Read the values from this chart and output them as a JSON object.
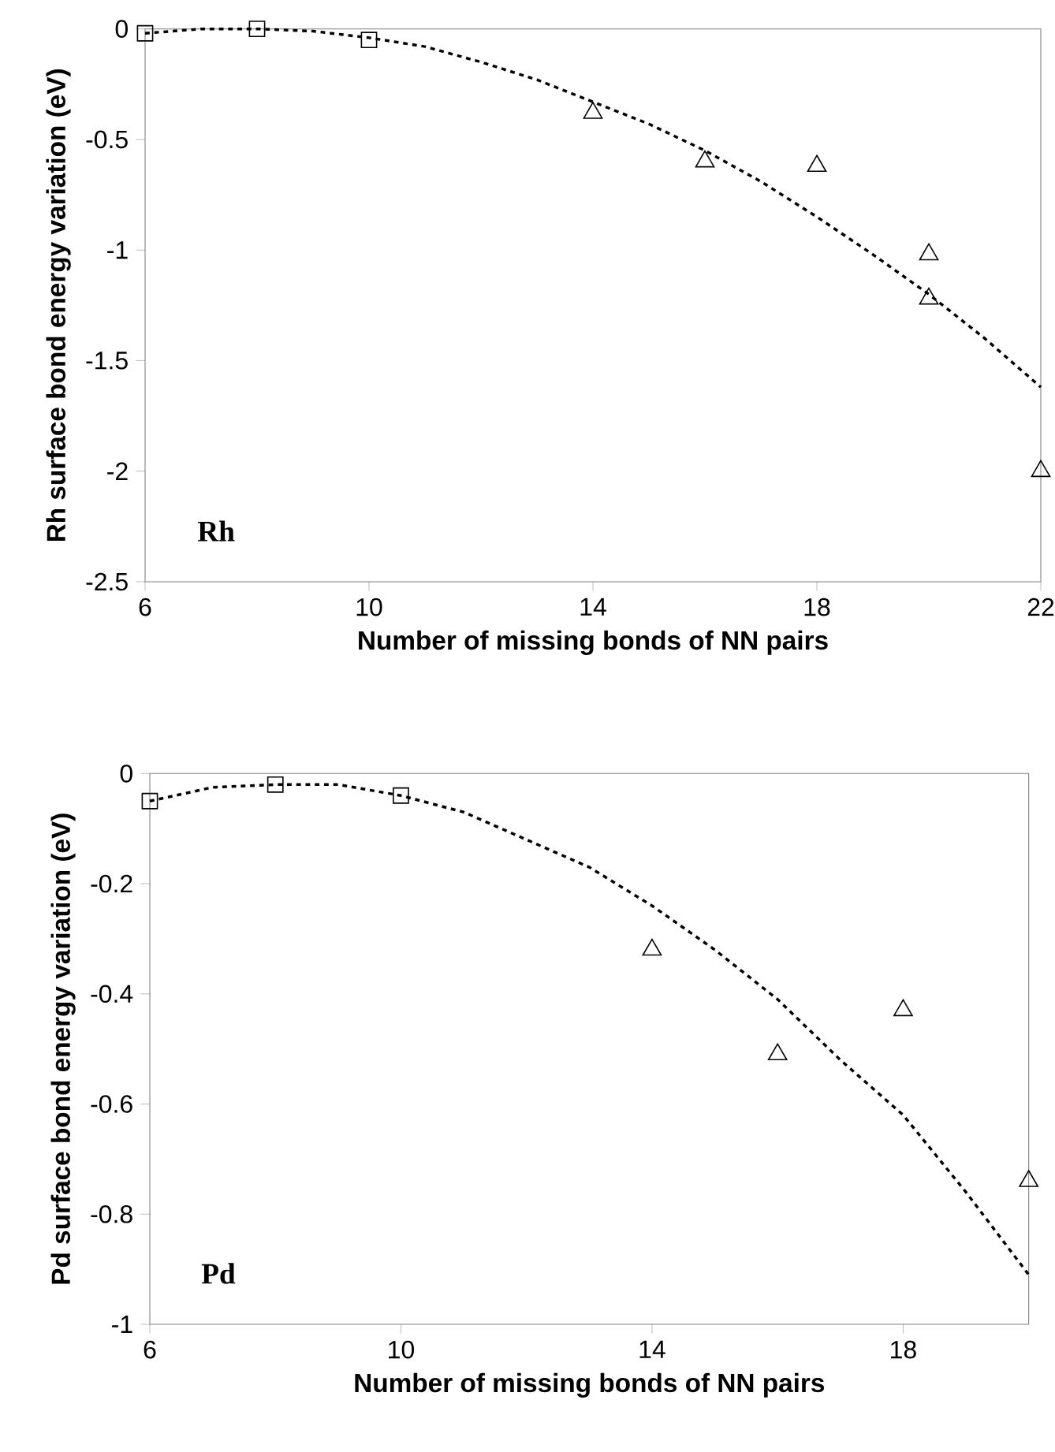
{
  "chart_data": [
    {
      "type": "scatter",
      "xlabel": "Number of missing bonds of NN pairs",
      "ylabel": "Rh surface bond energy variation (eV)",
      "xlim": [
        6,
        22
      ],
      "xticks": [
        6,
        10,
        14,
        18,
        22
      ],
      "ylim": [
        -2.5,
        0
      ],
      "yticks": [
        -2.5,
        -2,
        -1.5,
        -1,
        -0.5,
        0
      ],
      "annotations": [
        "Rh"
      ],
      "series": [
        {
          "type": "scatter",
          "marker": "square",
          "color": "#000000",
          "x": [
            6,
            8,
            10
          ],
          "values": [
            -0.02,
            0.0,
            -0.05
          ]
        },
        {
          "type": "scatter",
          "marker": "triangle",
          "color": "#000000",
          "x": [
            14,
            16,
            18,
            20,
            20,
            22
          ],
          "values": [
            -0.38,
            -0.6,
            -0.62,
            -1.02,
            -1.22,
            -2.0
          ]
        },
        {
          "type": "line",
          "marker": "none",
          "line_style": "dashed",
          "color": "#000000",
          "x": [
            6,
            7,
            8,
            9,
            10,
            11,
            12,
            13,
            14,
            15,
            16,
            17,
            18,
            19,
            20,
            21,
            22
          ],
          "values": [
            -0.02,
            0.0,
            0.0,
            -0.01,
            -0.04,
            -0.08,
            -0.15,
            -0.23,
            -0.33,
            -0.43,
            -0.55,
            -0.69,
            -0.85,
            -1.02,
            -1.2,
            -1.4,
            -1.62
          ]
        }
      ]
    },
    {
      "type": "scatter",
      "xlabel": "Number of missing bonds of NN pairs",
      "ylabel": "Pd surface bond energy variation (eV)",
      "xlim": [
        6,
        20
      ],
      "xticks": [
        6,
        10,
        14,
        18
      ],
      "ylim": [
        -1,
        0
      ],
      "yticks": [
        -1,
        -0.8,
        -0.6,
        -0.4,
        -0.2,
        0
      ],
      "annotations": [
        "Pd"
      ],
      "series": [
        {
          "type": "scatter",
          "marker": "square",
          "color": "#000000",
          "x": [
            6,
            8,
            10
          ],
          "values": [
            -0.05,
            -0.02,
            -0.04
          ]
        },
        {
          "type": "scatter",
          "marker": "triangle",
          "color": "#000000",
          "x": [
            14,
            16,
            18,
            20
          ],
          "values": [
            -0.32,
            -0.51,
            -0.43,
            -0.74
          ]
        },
        {
          "type": "line",
          "marker": "none",
          "line_style": "dashed",
          "color": "#000000",
          "x": [
            6,
            7,
            8,
            9,
            10,
            11,
            12,
            13,
            14,
            15,
            16,
            17,
            18,
            19,
            20
          ],
          "values": [
            -0.05,
            -0.025,
            -0.02,
            -0.02,
            -0.04,
            -0.07,
            -0.12,
            -0.17,
            -0.24,
            -0.32,
            -0.41,
            -0.52,
            -0.62,
            -0.76,
            -0.91
          ]
        }
      ]
    }
  ]
}
